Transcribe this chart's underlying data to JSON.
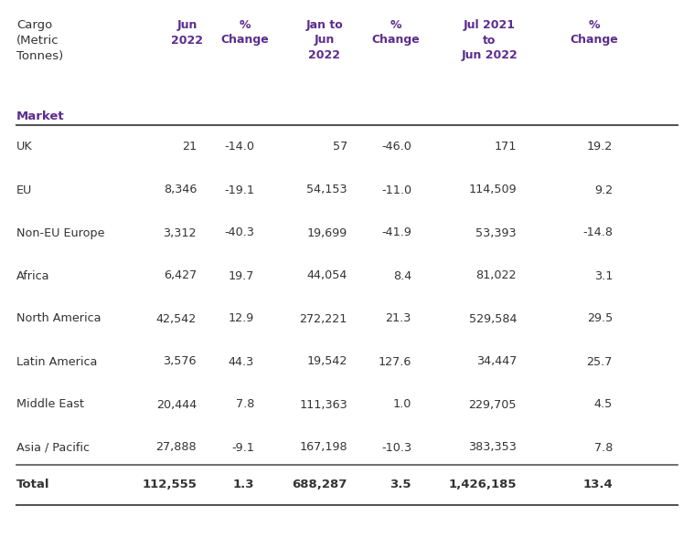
{
  "header_line1": "Cargo\n(Metric\nTonnes)",
  "col_headers": [
    "Jun\n2022",
    "%\nChange",
    "Jan to\nJun\n2022",
    "%\nChange",
    "Jul 2021\nto\nJun 2022",
    "%\nChange"
  ],
  "sub_header": "Market",
  "rows": [
    [
      "UK",
      "21",
      "-14.0",
      "57",
      "-46.0",
      "171",
      "19.2"
    ],
    [
      "EU",
      "8,346",
      "-19.1",
      "54,153",
      "-11.0",
      "114,509",
      "9.2"
    ],
    [
      "Non-EU Europe",
      "3,312",
      "-40.3",
      "19,699",
      "-41.9",
      "53,393",
      "-14.8"
    ],
    [
      "Africa",
      "6,427",
      "19.7",
      "44,054",
      "8.4",
      "81,022",
      "3.1"
    ],
    [
      "North America",
      "42,542",
      "12.9",
      "272,221",
      "21.3",
      "529,584",
      "29.5"
    ],
    [
      "Latin America",
      "3,576",
      "44.3",
      "19,542",
      "127.6",
      "34,447",
      "25.7"
    ],
    [
      "Middle East",
      "20,444",
      "7.8",
      "111,363",
      "1.0",
      "229,705",
      "4.5"
    ],
    [
      "Asia / Pacific",
      "27,888",
      "-9.1",
      "167,198",
      "-10.3",
      "383,353",
      "7.8"
    ]
  ],
  "total_row": [
    "Total",
    "112,555",
    "1.3",
    "688,287",
    "3.5",
    "1,426,185",
    "13.4"
  ],
  "purple_color": "#5B2D8E",
  "text_color": "#333333",
  "light_gray": "#888888",
  "bg_color": "#FFFFFF",
  "line_color": "#AAAAAA",
  "bold_line_color": "#555555"
}
